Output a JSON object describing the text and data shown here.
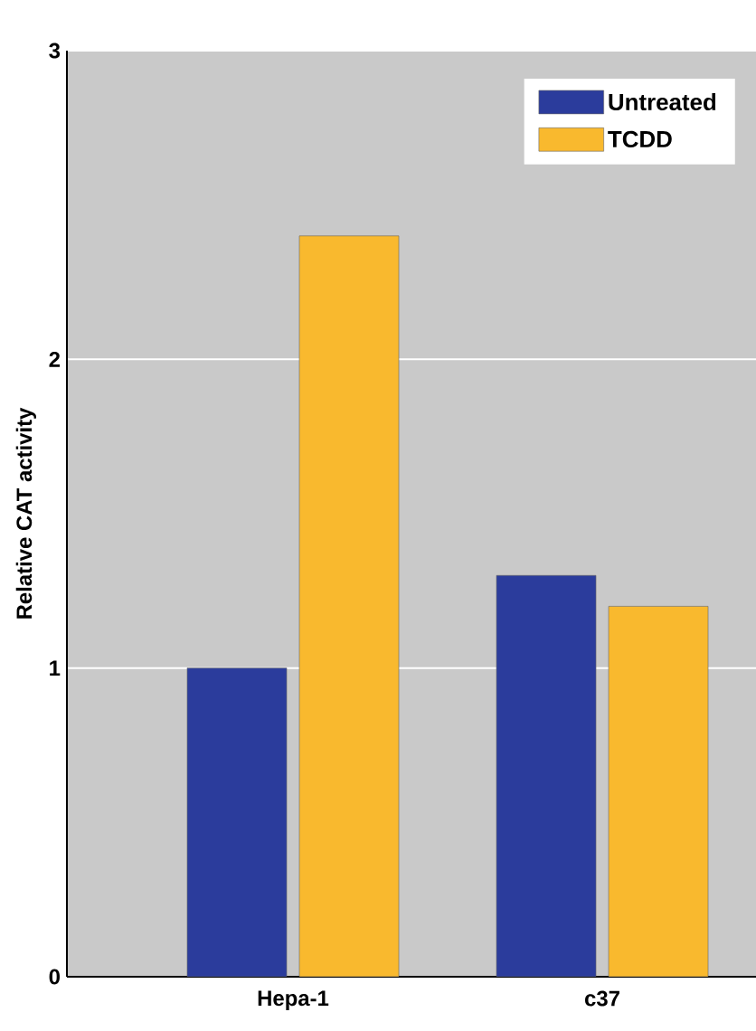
{
  "chart_data": {
    "type": "bar",
    "ylabel": "Relative CAT activity",
    "categories": [
      "Hepa-1",
      "c37"
    ],
    "series": [
      {
        "name": "Untreated",
        "color": "#2b3c9c",
        "values": [
          1.0,
          1.3
        ]
      },
      {
        "name": "TCDD",
        "color": "#f9b92e",
        "values": [
          2.4,
          1.2
        ]
      }
    ],
    "ylim": [
      0,
      3
    ],
    "yticks": [
      0,
      1,
      2,
      3
    ],
    "grid": "y",
    "legend": "top right"
  }
}
